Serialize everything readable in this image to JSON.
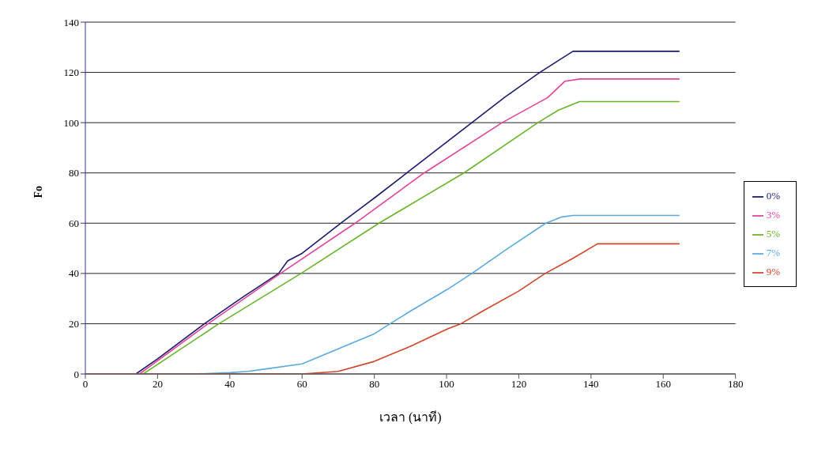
{
  "chart_data": {
    "type": "line",
    "xlabel": "เวลา (นาที)",
    "ylabel": "Fo",
    "xlim": [
      0,
      180
    ],
    "xticks": [
      0,
      20,
      40,
      60,
      80,
      100,
      120,
      140,
      160,
      180
    ],
    "ylim": [
      0,
      140
    ],
    "yticks": [
      0,
      20,
      40,
      60,
      80,
      100,
      120,
      140
    ],
    "grid": "y",
    "legend": "right",
    "marker": "none",
    "line_style": "solid",
    "series": [
      {
        "name": "0%",
        "color": "#1a1a6e",
        "x": [
          0,
          14,
          20,
          33,
          43,
          53.5,
          56,
          60,
          70.7,
          80,
          89,
          98,
          107,
          116,
          125.8,
          135,
          164.5
        ],
        "values": [
          0,
          0,
          6,
          20,
          30,
          40,
          45,
          48,
          60,
          70,
          80,
          90,
          100,
          110,
          120,
          128.4,
          128.4
        ]
      },
      {
        "name": "3%",
        "color": "#e0449a",
        "x": [
          0,
          15,
          34,
          54,
          74.7,
          93.8,
          115.4,
          128,
          132.8,
          137,
          164.5
        ],
        "values": [
          0,
          0,
          20,
          40,
          60,
          80,
          100,
          110,
          116.5,
          117.4,
          117.4
        ]
      },
      {
        "name": "5%",
        "color": "#6ab42c",
        "x": [
          0,
          16,
          37,
          59.7,
          81.3,
          104.8,
          125.3,
          131,
          136.8,
          164.5
        ],
        "values": [
          0,
          0,
          20,
          40,
          60,
          80,
          100,
          105,
          108.4,
          108.4
        ]
      },
      {
        "name": "7%",
        "color": "#5aaae0",
        "x": [
          0,
          30,
          40,
          45,
          50,
          60,
          70,
          80,
          84.4,
          90,
          100.4,
          107,
          117,
          127.5,
          132,
          135,
          164.5
        ],
        "values": [
          0,
          0,
          0.5,
          1,
          2,
          4,
          10,
          16,
          20,
          25,
          33.8,
          40,
          50,
          60,
          62.5,
          63.1,
          63.1
        ]
      },
      {
        "name": "9%",
        "color": "#d0452a",
        "x": [
          0,
          60,
          70,
          80,
          90,
          100.4,
          104,
          110,
          120,
          127.3,
          135,
          141.8,
          164.5
        ],
        "values": [
          0,
          0,
          1,
          5,
          11,
          18,
          20,
          25,
          33,
          40,
          46,
          51.8,
          51.8
        ]
      }
    ]
  }
}
